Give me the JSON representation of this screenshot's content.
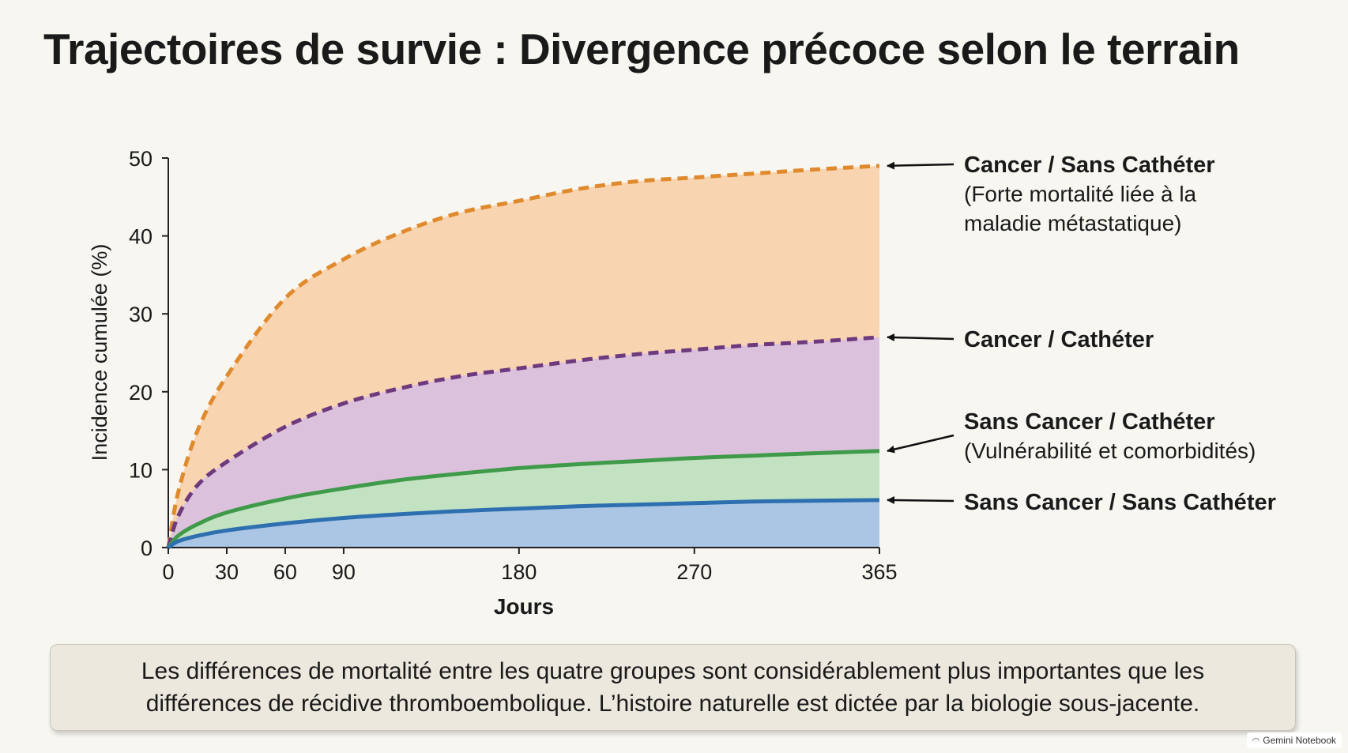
{
  "page": {
    "title": "Trajectoires de survie : Divergence précoce selon le terrain",
    "caption": "Les différences de mortalité entre les quatre groupes sont considérablement plus importantes que les différences de récidive thromboembolique. L’histoire naturelle est dictée par la biologie sous-jacente.",
    "watermark": "Gemini Notebook"
  },
  "chart_data": {
    "type": "area",
    "xlabel": "Jours",
    "ylabel": "Incidence cumulée (%)",
    "xlim": [
      0,
      365
    ],
    "ylim": [
      0,
      50
    ],
    "x_ticks": [
      0,
      30,
      60,
      90,
      180,
      270,
      365
    ],
    "y_ticks": [
      0,
      10,
      20,
      30,
      40,
      50
    ],
    "grid": false,
    "legend": "right-side arrow labels",
    "series": [
      {
        "name": "Cancer / Sans Cathéter",
        "note": "(Forte mortalité liée à la maladie métastatique)",
        "line_style": "dashed",
        "color": "#e08a2e",
        "fill": "#f8d4b0",
        "x": [
          0,
          5,
          15,
          30,
          60,
          90,
          120,
          150,
          180,
          210,
          240,
          270,
          300,
          330,
          365
        ],
        "y": [
          0,
          7,
          15,
          22,
          32,
          37,
          40.5,
          43,
          44.5,
          46,
          47,
          47.5,
          48,
          48.5,
          49
        ]
      },
      {
        "name": "Cancer / Cathéter",
        "line_style": "dashed",
        "color": "#6e3a7e",
        "fill": "#dcc1dd",
        "x": [
          0,
          5,
          15,
          30,
          60,
          90,
          120,
          150,
          180,
          210,
          240,
          270,
          300,
          330,
          365
        ],
        "y": [
          0,
          4,
          8,
          11,
          15.5,
          18.5,
          20.5,
          22,
          23,
          24,
          24.8,
          25.4,
          26,
          26.4,
          27
        ]
      },
      {
        "name": "Sans Cancer / Cathéter",
        "note": "(Vulnérabilité et comorbidités)",
        "line_style": "solid",
        "color": "#3f9a4a",
        "fill": "#c2e2c1",
        "x": [
          0,
          5,
          15,
          30,
          60,
          90,
          120,
          150,
          180,
          210,
          240,
          270,
          300,
          330,
          365
        ],
        "y": [
          0,
          1.5,
          3,
          4.5,
          6.3,
          7.6,
          8.7,
          9.5,
          10.2,
          10.7,
          11.1,
          11.5,
          11.8,
          12.1,
          12.4
        ]
      },
      {
        "name": "Sans Cancer / Sans Cathéter",
        "line_style": "solid",
        "color": "#2e6fb0",
        "fill": "#aac6e4",
        "x": [
          0,
          5,
          15,
          30,
          60,
          90,
          120,
          150,
          180,
          210,
          240,
          270,
          300,
          330,
          365
        ],
        "y": [
          0,
          0.8,
          1.5,
          2.2,
          3.1,
          3.8,
          4.3,
          4.7,
          5.0,
          5.3,
          5.5,
          5.7,
          5.9,
          6.0,
          6.1
        ]
      }
    ]
  }
}
